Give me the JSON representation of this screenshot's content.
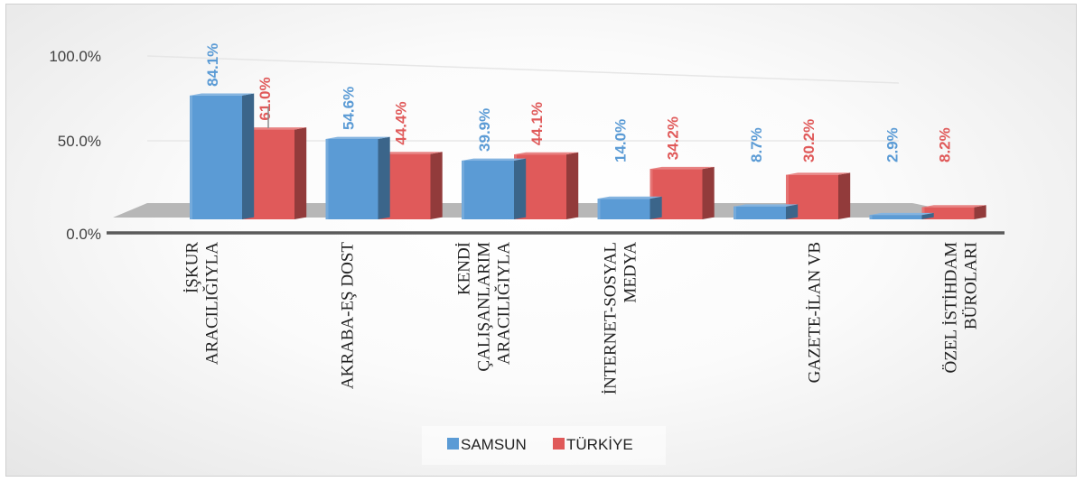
{
  "chart_data": {
    "type": "bar",
    "categories": [
      [
        "İŞKUR",
        "ARACILIĞIYLA"
      ],
      [
        "AKRABA-EŞ DOST"
      ],
      [
        "KENDİ",
        "ÇALIŞANLARIM",
        "ARACILIĞIYLA"
      ],
      [
        "İNTERNET-SOSYAL",
        "MEDYA"
      ],
      [
        "GAZETE-İLAN VB"
      ],
      [
        "ÖZEL İSTİHDAM",
        "BÜROLARI"
      ]
    ],
    "series": [
      {
        "name": "SAMSUN",
        "color": "#5b9bd5",
        "values": [
          84.1,
          54.6,
          39.9,
          14.0,
          8.7,
          2.9
        ],
        "labels": [
          "84.1%",
          "54.6%",
          "39.9%",
          "14.0%",
          "8.7%",
          "2.9%"
        ]
      },
      {
        "name": "TÜRKİYE",
        "color": "#e05a5a",
        "values": [
          61.0,
          44.4,
          44.1,
          34.2,
          30.2,
          8.2
        ],
        "labels": [
          "61.0%",
          "44.4%",
          "44.1%",
          "34.2%",
          "30.2%",
          "8.2%"
        ]
      }
    ],
    "yticks": [
      "100.0%",
      "50.0%",
      "0.0%"
    ],
    "ylim": [
      0,
      100
    ],
    "grid": true,
    "legend": "bottom",
    "style": "3d-clustered-bar"
  }
}
